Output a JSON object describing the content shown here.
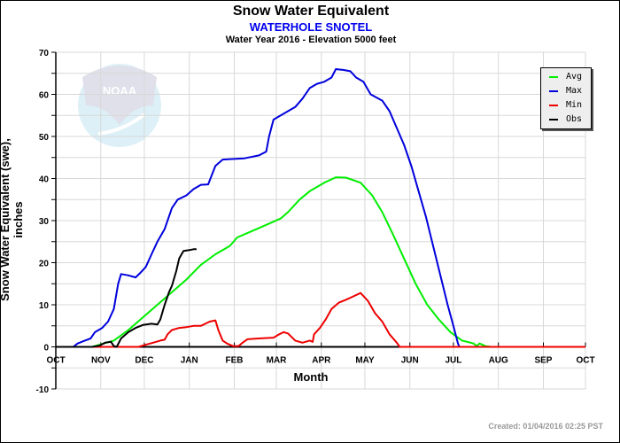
{
  "chart_data": {
    "type": "line",
    "title": "Snow Water Equivalent",
    "subtitle": "WATERHOLE SNOTEL",
    "subtitle2": "Water Year 2016 -  Elevation 5000 feet",
    "xlabel": "Month",
    "ylabel": "Snow Water Equivalent (swe),  inches",
    "x_unit": "day of water year (0 = Oct 1)",
    "xlim": [
      0,
      365
    ],
    "ylim": [
      -10,
      70
    ],
    "yticks": [
      70,
      60,
      50,
      40,
      30,
      20,
      10,
      0,
      -10
    ],
    "xticks": [
      {
        "label": "OCT",
        "day": 0
      },
      {
        "label": "NOV",
        "day": 31
      },
      {
        "label": "DEC",
        "day": 61
      },
      {
        "label": "JAN",
        "day": 92
      },
      {
        "label": "FEB",
        "day": 123
      },
      {
        "label": "MAR",
        "day": 152
      },
      {
        "label": "APR",
        "day": 183
      },
      {
        "label": "MAY",
        "day": 213
      },
      {
        "label": "JUN",
        "day": 244
      },
      {
        "label": "JUL",
        "day": 274
      },
      {
        "label": "AUG",
        "day": 305
      },
      {
        "label": "SEP",
        "day": 336
      },
      {
        "label": "OCT",
        "day": 365
      }
    ],
    "grid": true,
    "legend_position": "top-right",
    "series": [
      {
        "name": "Avg",
        "color": "#00ee00",
        "points": [
          [
            0,
            0
          ],
          [
            25,
            0
          ],
          [
            33,
            0.8
          ],
          [
            40,
            1.5
          ],
          [
            50,
            4
          ],
          [
            60,
            7
          ],
          [
            70,
            10
          ],
          [
            80,
            13
          ],
          [
            90,
            16
          ],
          [
            100,
            19.5
          ],
          [
            110,
            22
          ],
          [
            120,
            24
          ],
          [
            125,
            26
          ],
          [
            135,
            27.5
          ],
          [
            145,
            29
          ],
          [
            155,
            30.5
          ],
          [
            160,
            32
          ],
          [
            168,
            35
          ],
          [
            175,
            37
          ],
          [
            185,
            39
          ],
          [
            193,
            40.3
          ],
          [
            200,
            40.2
          ],
          [
            210,
            39
          ],
          [
            218,
            36
          ],
          [
            225,
            32
          ],
          [
            232,
            27
          ],
          [
            240,
            21
          ],
          [
            248,
            15
          ],
          [
            256,
            10
          ],
          [
            264,
            6.5
          ],
          [
            272,
            3.5
          ],
          [
            280,
            1.5
          ],
          [
            288,
            0.8
          ],
          [
            290,
            0.2
          ],
          [
            292,
            0.8
          ],
          [
            296,
            0.2
          ],
          [
            300,
            0
          ]
        ]
      },
      {
        "name": "Max",
        "color": "#0000dd",
        "points": [
          [
            0,
            0
          ],
          [
            12,
            0
          ],
          [
            15,
            0.8
          ],
          [
            20,
            1.5
          ],
          [
            24,
            2
          ],
          [
            27,
            3.5
          ],
          [
            32,
            4.5
          ],
          [
            36,
            6
          ],
          [
            40,
            9
          ],
          [
            43,
            15
          ],
          [
            45,
            17.3
          ],
          [
            50,
            17
          ],
          [
            55,
            16.5
          ],
          [
            58,
            17.5
          ],
          [
            62,
            19
          ],
          [
            66,
            22
          ],
          [
            70,
            25
          ],
          [
            75,
            28
          ],
          [
            80,
            33
          ],
          [
            84,
            35
          ],
          [
            90,
            36
          ],
          [
            95,
            37.5
          ],
          [
            100,
            38.5
          ],
          [
            105,
            38.6
          ],
          [
            110,
            43
          ],
          [
            115,
            44.5
          ],
          [
            120,
            44.6
          ],
          [
            130,
            44.8
          ],
          [
            140,
            45.5
          ],
          [
            145,
            46.4
          ],
          [
            147,
            50
          ],
          [
            150,
            54
          ],
          [
            155,
            55
          ],
          [
            160,
            56
          ],
          [
            165,
            57
          ],
          [
            170,
            59
          ],
          [
            175,
            61.5
          ],
          [
            180,
            62.5
          ],
          [
            185,
            63
          ],
          [
            190,
            64
          ],
          [
            193,
            66
          ],
          [
            198,
            65.8
          ],
          [
            203,
            65.5
          ],
          [
            207,
            64
          ],
          [
            212,
            63
          ],
          [
            217,
            60
          ],
          [
            225,
            58.5
          ],
          [
            230,
            56
          ],
          [
            235,
            52
          ],
          [
            240,
            48
          ],
          [
            245,
            43
          ],
          [
            250,
            37
          ],
          [
            255,
            31
          ],
          [
            260,
            24
          ],
          [
            265,
            17
          ],
          [
            270,
            10
          ],
          [
            274,
            5
          ],
          [
            277,
            1
          ],
          [
            278,
            0
          ],
          [
            365,
            0
          ]
        ]
      },
      {
        "name": "Min",
        "color": "#ee0000",
        "points": [
          [
            0,
            0
          ],
          [
            57,
            0
          ],
          [
            62,
            0.5
          ],
          [
            67,
            1
          ],
          [
            72,
            1.5
          ],
          [
            75,
            1.7
          ],
          [
            77,
            3
          ],
          [
            80,
            4
          ],
          [
            85,
            4.5
          ],
          [
            90,
            4.7
          ],
          [
            95,
            5
          ],
          [
            100,
            5
          ],
          [
            103,
            5.5
          ],
          [
            106,
            6
          ],
          [
            110,
            6.3
          ],
          [
            112,
            4
          ],
          [
            115,
            1.5
          ],
          [
            118,
            0.8
          ],
          [
            122,
            0.2
          ],
          [
            126,
            0.2
          ],
          [
            128,
            0.8
          ],
          [
            132,
            1.8
          ],
          [
            140,
            2
          ],
          [
            150,
            2.2
          ],
          [
            154,
            3
          ],
          [
            157,
            3.5
          ],
          [
            160,
            3.2
          ],
          [
            165,
            1.5
          ],
          [
            170,
            1
          ],
          [
            175,
            1.5
          ],
          [
            177,
            1.2
          ],
          [
            178,
            3
          ],
          [
            182,
            4.5
          ],
          [
            186,
            6.5
          ],
          [
            190,
            9
          ],
          [
            195,
            10.5
          ],
          [
            200,
            11.2
          ],
          [
            205,
            12
          ],
          [
            210,
            12.8
          ],
          [
            215,
            11
          ],
          [
            220,
            8
          ],
          [
            225,
            6
          ],
          [
            230,
            3
          ],
          [
            235,
            1
          ],
          [
            237,
            0
          ],
          [
            365,
            0
          ]
        ]
      },
      {
        "name": "Obs",
        "color": "#000000",
        "points": [
          [
            0,
            0
          ],
          [
            25,
            0
          ],
          [
            30,
            0.3
          ],
          [
            34,
            1
          ],
          [
            38,
            1.2
          ],
          [
            40,
            0.2
          ],
          [
            42,
            0
          ],
          [
            45,
            2
          ],
          [
            50,
            3.5
          ],
          [
            55,
            4.5
          ],
          [
            60,
            5.2
          ],
          [
            66,
            5.5
          ],
          [
            70,
            5.3
          ],
          [
            72,
            6.5
          ],
          [
            75,
            10
          ],
          [
            78,
            13
          ],
          [
            80,
            14.5
          ],
          [
            83,
            18
          ],
          [
            85,
            21
          ],
          [
            88,
            22.8
          ],
          [
            92,
            23
          ],
          [
            95,
            23.2
          ],
          [
            97,
            23.2
          ]
        ]
      }
    ]
  },
  "watermark": "NOAA",
  "created": "Created: 01/04/2016 02:25 PST"
}
